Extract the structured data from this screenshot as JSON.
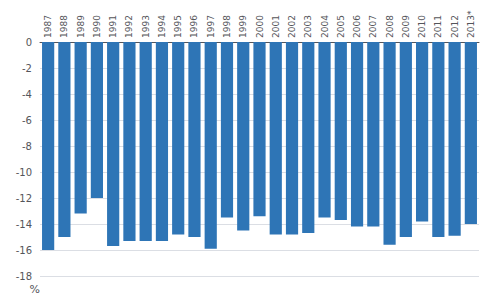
{
  "chart_data": {
    "type": "bar",
    "categories": [
      "1987",
      "1988",
      "1989",
      "1990",
      "1991",
      "1992",
      "1993",
      "1994",
      "1995",
      "1996",
      "1997",
      "1998",
      "1999",
      "2000",
      "2001",
      "2002",
      "2003",
      "2004",
      "2005",
      "2006",
      "2007",
      "2008",
      "2009",
      "2010",
      "2011",
      "2012",
      "2013*"
    ],
    "values": [
      -16.0,
      -15.0,
      -13.2,
      -12.0,
      -15.7,
      -15.3,
      -15.3,
      -15.3,
      -14.8,
      -15.0,
      -15.9,
      -13.5,
      -14.5,
      -13.4,
      -14.8,
      -14.8,
      -14.7,
      -13.5,
      -13.7,
      -14.2,
      -14.2,
      -15.6,
      -15.0,
      -13.8,
      -15.0,
      -14.9,
      -14.0
    ],
    "color": "#2E75B6",
    "ylabel": "%",
    "ylim": [
      -18,
      0
    ],
    "yticks": [
      0,
      -2,
      -4,
      -6,
      -8,
      -10,
      -12,
      -14,
      -16,
      -18
    ],
    "grid": true
  }
}
